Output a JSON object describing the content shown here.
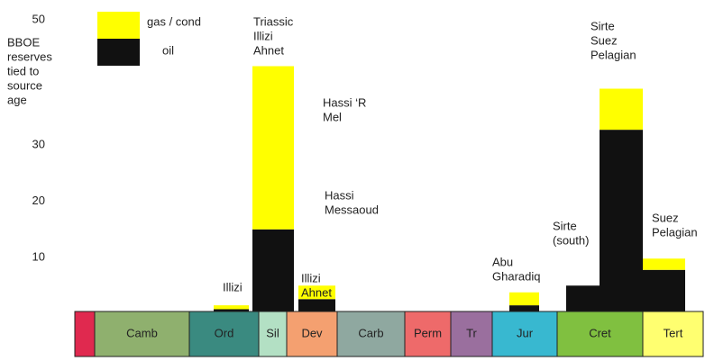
{
  "chart_data": {
    "type": "stacked_bar",
    "y_label": [
      "BBOE",
      "reserves",
      "tied to",
      "source",
      "age"
    ],
    "ylim": [
      0,
      50
    ],
    "yticks": [
      10,
      20,
      30,
      50
    ],
    "bar_labels": [
      [
        "Illizi"
      ],
      [
        "Triassic",
        "Illizi",
        "Ahnet"
      ],
      [
        "Illizi",
        "Ahnet"
      ],
      [
        "Abu",
        "Gharadiq"
      ],
      [
        "Sirte",
        "(south)"
      ],
      [
        "Sirte",
        "Suez",
        "Pelagian"
      ],
      [
        "Suez",
        "Pelagian"
      ]
    ],
    "series": [
      {
        "name": "oil",
        "color": "#111111",
        "values": [
          0.8,
          15,
          2.6,
          1.5,
          5,
          32.7,
          7.8
        ]
      },
      {
        "name": "gas / cond",
        "color": "#ffff00",
        "values": [
          0.7,
          29,
          2.4,
          2.3,
          0,
          7.3,
          2
        ]
      }
    ],
    "annotations": [
      [
        "Hassi ‘R",
        "Mel"
      ],
      [
        "Hassi",
        "Messaoud"
      ]
    ],
    "periods": [
      {
        "name": null,
        "color": "#e0294f"
      },
      {
        "name": "Camb",
        "color": "#8fb06e"
      },
      {
        "name": "Ord",
        "color": "#3a8a80"
      },
      {
        "name": "Sil",
        "color": "#b3e0c4"
      },
      {
        "name": "Dev",
        "color": "#f4a070"
      },
      {
        "name": "Carb",
        "color": "#8fa8a0"
      },
      {
        "name": "Perm",
        "color": "#ee6a6a"
      },
      {
        "name": "Tr",
        "color": "#9a6f9e"
      },
      {
        "name": "Jur",
        "color": "#38b8d0"
      },
      {
        "name": "Cret",
        "color": "#80c040"
      },
      {
        "name": "Tert",
        "color": "#ffff70"
      }
    ]
  }
}
